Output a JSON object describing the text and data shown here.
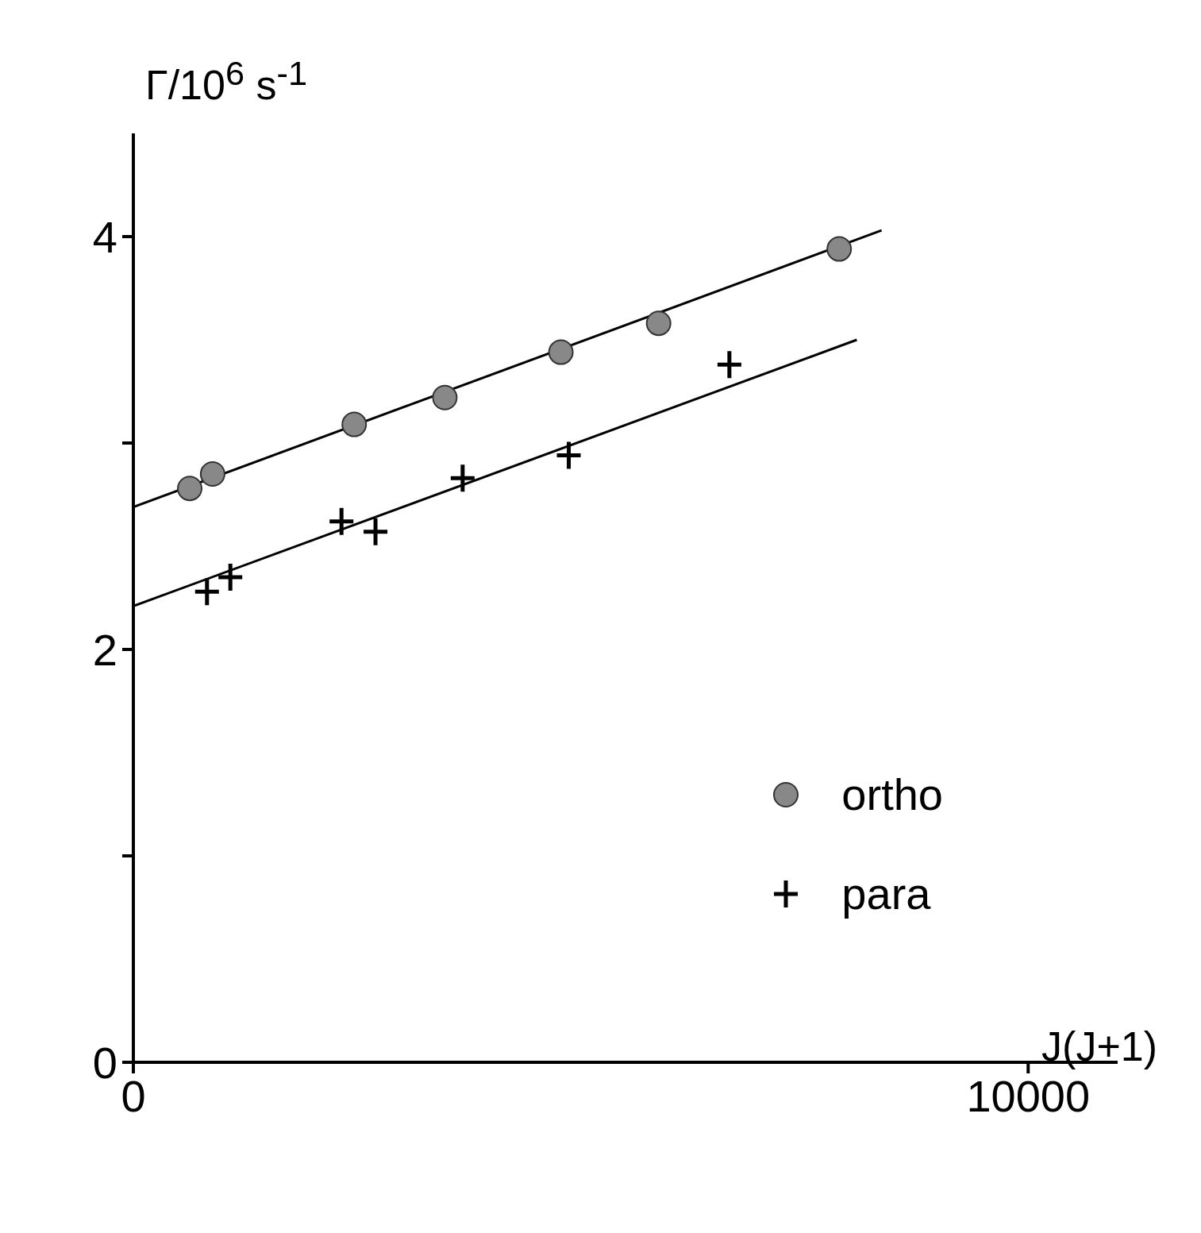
{
  "chart_data": {
    "type": "scatter",
    "ylabel": "Γ/10$^{6}$ s$^{-1}$",
    "xlabel": "J(J+1)",
    "xlim": [
      0,
      11000
    ],
    "ylim": [
      0,
      4.5
    ],
    "xticks": [
      0,
      10000
    ],
    "yticks": [
      0,
      {
        "value": 1,
        "label": null
      },
      2,
      {
        "value": 3,
        "label": null
      },
      4
    ],
    "legend": "right",
    "series": [
      {
        "name": "ortho",
        "color": "#888888",
        "marker": "circle",
        "x": [
          630,
          886,
          2468,
          3481,
          4778,
          5870,
          7888
        ],
        "values": [
          2.78,
          2.85,
          3.09,
          3.22,
          3.44,
          3.58,
          3.94
        ]
      },
      {
        "name": "para",
        "color": "#000000",
        "marker": "cross",
        "x": [
          823,
          1084,
          2326,
          2706,
          3680,
          4866,
          6661
        ],
        "values": [
          2.28,
          2.35,
          2.62,
          2.57,
          2.83,
          2.94,
          3.38
        ]
      },
      {
        "type": "line",
        "color": "#000000",
        "x": [
          0,
          8362
        ],
        "values": [
          2.69,
          4.03
        ]
      },
      {
        "type": "line",
        "color": "#000000",
        "x": [
          0,
          8085
        ],
        "values": [
          2.21,
          3.5
        ]
      }
    ]
  }
}
